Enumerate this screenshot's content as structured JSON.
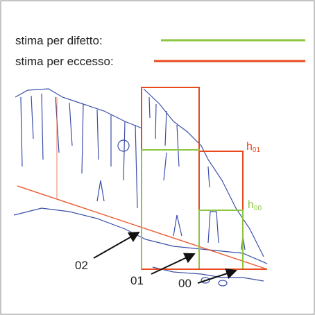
{
  "legend": {
    "lower": "stima per difetto:",
    "upper": "stima per eccesso:"
  },
  "heights": [
    {
      "base": "h",
      "sub": "01"
    },
    {
      "base": "h",
      "sub": "00"
    }
  ],
  "points": [
    "02",
    "01",
    "00"
  ]
}
